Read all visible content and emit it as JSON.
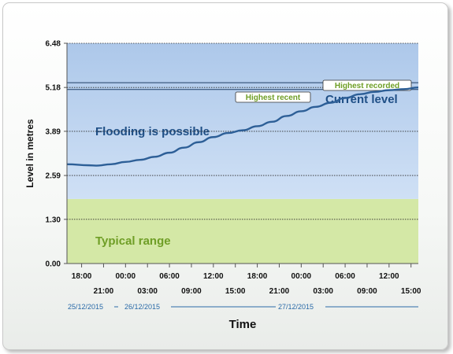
{
  "chart_data": {
    "type": "line",
    "xlabel": "Time",
    "ylabel": "Level in metres",
    "ylim": [
      0,
      6.48
    ],
    "yticks": [
      "0.00",
      "1.30",
      "2.59",
      "3.89",
      "5.18",
      "6.48"
    ],
    "xticks_upper": [
      "18:00",
      "00:00",
      "06:00",
      "12:00",
      "18:00",
      "00:00",
      "06:00",
      "12:00"
    ],
    "xticks_lower": [
      "21:00",
      "03:00",
      "09:00",
      "15:00",
      "21:00",
      "03:00",
      "09:00",
      "15:00"
    ],
    "dates": [
      "25/12/2015",
      "26/12/2015",
      "27/12/2015"
    ],
    "xlim_hours": [
      -8,
      40
    ],
    "bands": [
      {
        "label": "Typical range",
        "from": 0,
        "to": 1.9,
        "color": "#d4e8a6",
        "label_color": "#6f9e26"
      },
      {
        "label": "Flooding is possible",
        "from": 1.9,
        "to": 6.48,
        "color": "#bcd3ef",
        "label_color": "#1f4f86"
      }
    ],
    "reference_lines": [
      {
        "label": "Highest recorded",
        "value": 5.32
      },
      {
        "label": "Highest recent",
        "value": 5.12
      }
    ],
    "current_label": "Current level",
    "series": [
      {
        "color": "#2d5f97",
        "x": [
          -8,
          -5,
          -4,
          -2,
          0,
          2,
          4,
          6,
          8,
          10,
          12,
          14,
          16,
          18,
          20,
          22,
          24,
          26,
          28,
          30,
          32,
          34,
          36,
          38,
          40
        ],
        "y": [
          2.92,
          2.89,
          2.88,
          2.92,
          2.99,
          3.05,
          3.14,
          3.26,
          3.41,
          3.57,
          3.72,
          3.84,
          3.92,
          4.04,
          4.17,
          4.34,
          4.48,
          4.61,
          4.73,
          4.87,
          4.98,
          5.05,
          5.1,
          5.13,
          5.18
        ]
      }
    ]
  }
}
